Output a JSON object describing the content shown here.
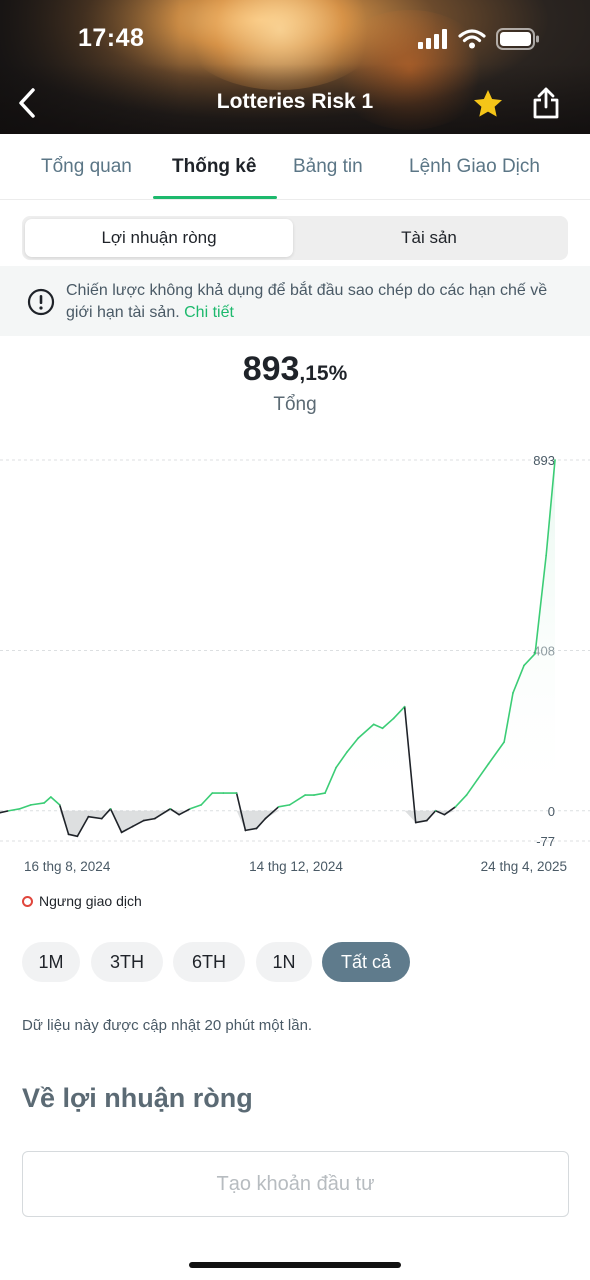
{
  "status_bar": {
    "time": "17:48"
  },
  "nav": {
    "title": "Lotteries Risk 1",
    "back_icon": "chevron-left-icon",
    "star_icon": "star-icon",
    "share_icon": "share-icon",
    "star_color": "#f5c518"
  },
  "tabs": [
    {
      "label": "Tổng quan"
    },
    {
      "label": "Thống kê"
    },
    {
      "label": "Bảng tin"
    },
    {
      "label": "Lệnh Giao Dịch"
    }
  ],
  "active_tab": "Thống kê",
  "segment": {
    "options": [
      "Lợi nhuận ròng",
      "Tài sản"
    ],
    "selected": "Lợi nhuận ròng"
  },
  "notice": {
    "text": "Chiến lược không khả dụng để bắt đầu sao chép do các hạn chế về giới hạn tài sản. ",
    "link": "Chi tiết",
    "icon": "info-icon"
  },
  "summary": {
    "value_int": "893",
    "value_dec": ",15%",
    "label": "Tổng"
  },
  "chart_data": {
    "type": "area",
    "x": [
      "2024-08-16",
      "2024-08-20",
      "2024-08-25",
      "2024-08-30",
      "2024-09-05",
      "2024-09-08",
      "2024-09-12",
      "2024-09-16",
      "2024-09-20",
      "2024-09-25",
      "2024-10-01",
      "2024-10-05",
      "2024-10-10",
      "2024-10-15",
      "2024-10-20",
      "2024-10-25",
      "2024-11-01",
      "2024-11-05",
      "2024-11-10",
      "2024-11-15",
      "2024-11-20",
      "2024-11-25",
      "2024-12-01",
      "2024-12-05",
      "2024-12-10",
      "2024-12-14",
      "2024-12-20",
      "2024-12-25",
      "2025-01-01",
      "2025-01-05",
      "2025-01-10",
      "2025-01-15",
      "2025-01-20",
      "2025-01-25",
      "2025-02-01",
      "2025-02-05",
      "2025-02-10",
      "2025-02-15",
      "2025-02-20",
      "2025-02-25",
      "2025-03-01",
      "2025-03-05",
      "2025-03-10",
      "2025-03-15",
      "2025-03-20",
      "2025-03-25",
      "2025-04-01",
      "2025-04-05",
      "2025-04-10",
      "2025-04-15",
      "2025-04-20",
      "2025-04-24"
    ],
    "values": [
      -5,
      0,
      5,
      15,
      20,
      35,
      15,
      -60,
      -65,
      -15,
      -20,
      5,
      -55,
      -40,
      -25,
      -20,
      5,
      -10,
      5,
      15,
      45,
      45,
      45,
      -50,
      -45,
      -20,
      10,
      15,
      40,
      40,
      45,
      110,
      150,
      185,
      220,
      210,
      235,
      265,
      -30,
      -25,
      0,
      -10,
      10,
      40,
      80,
      120,
      175,
      300,
      370,
      400,
      650,
      893
    ],
    "stopped_trading_segments": "gray shading below zero",
    "y_ticks": [
      893,
      408,
      0,
      -77
    ],
    "x_tick_labels": [
      "16 thg 8, 2024",
      "14 thg 12, 2024",
      "24 thg 4, 2025"
    ],
    "ylim": [
      -77,
      893
    ],
    "legend": [
      {
        "label": "Ngưng giao dịch",
        "color": "#e0463c"
      }
    ],
    "colors": {
      "line": "#3ccd76",
      "fill_top": "#e6f7ee",
      "negative_line": "#1f2329",
      "negative_fill": "#c7cacc"
    },
    "grid": "dashed horizontal at ticks"
  },
  "periods": [
    {
      "label": "1M"
    },
    {
      "label": "3TH"
    },
    {
      "label": "6TH"
    },
    {
      "label": "1N"
    },
    {
      "label": "Tất cả"
    }
  ],
  "active_period": "Tất cả",
  "update_note": "Dữ liệu này được cập nhật 20 phút một lần.",
  "section_title": "Về lợi nhuận ròng",
  "invest_button": "Tạo khoản đầu tư",
  "colors": {
    "accent": "#1db96d",
    "period_active": "#5f7b8c"
  }
}
